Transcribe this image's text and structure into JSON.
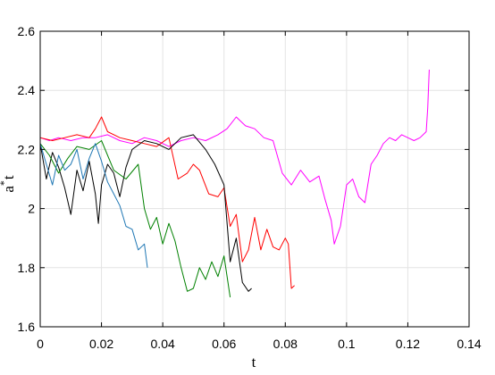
{
  "chart_data": {
    "type": "line",
    "xlabel": "t",
    "ylabel": {
      "base": "a",
      "sup": "*",
      "sub": "t"
    },
    "xlim": [
      0,
      0.14
    ],
    "ylim": [
      1.6,
      2.6
    ],
    "xticks": [
      0,
      0.02,
      0.04,
      0.06,
      0.08,
      0.1,
      0.12,
      0.14
    ],
    "xtick_labels": [
      "0",
      "0.02",
      "0.04",
      "0.06",
      "0.08",
      "0.1",
      "0.12",
      "0.14"
    ],
    "yticks": [
      1.6,
      1.8,
      2.0,
      2.2,
      2.4,
      2.6
    ],
    "ytick_labels": [
      "1.6",
      "1.8",
      "2",
      "2.2",
      "2.4",
      "2.6"
    ],
    "grid": true,
    "series": [
      {
        "color": "#ff00ff",
        "x": [
          0,
          0.003,
          0.006,
          0.01,
          0.014,
          0.018,
          0.022,
          0.026,
          0.03,
          0.034,
          0.038,
          0.042,
          0.046,
          0.05,
          0.054,
          0.058,
          0.061,
          0.064,
          0.067,
          0.07,
          0.073,
          0.076,
          0.079,
          0.082,
          0.085,
          0.088,
          0.091,
          0.093,
          0.095,
          0.096,
          0.098,
          0.1,
          0.102,
          0.104,
          0.106,
          0.108,
          0.11,
          0.112,
          0.114,
          0.116,
          0.118,
          0.12,
          0.122,
          0.124,
          0.126,
          0.1265,
          0.127
        ],
        "y": [
          2.24,
          2.23,
          2.24,
          2.23,
          2.24,
          2.24,
          2.25,
          2.23,
          2.22,
          2.24,
          2.23,
          2.21,
          2.23,
          2.24,
          2.23,
          2.25,
          2.27,
          2.31,
          2.28,
          2.27,
          2.24,
          2.23,
          2.12,
          2.08,
          2.13,
          2.09,
          2.11,
          2.03,
          1.96,
          1.88,
          1.94,
          2.08,
          2.1,
          2.04,
          2.02,
          2.15,
          2.18,
          2.22,
          2.24,
          2.23,
          2.25,
          2.24,
          2.23,
          2.24,
          2.26,
          2.34,
          2.47
        ]
      },
      {
        "color": "#ff0000",
        "x": [
          0,
          0.004,
          0.008,
          0.012,
          0.016,
          0.018,
          0.02,
          0.022,
          0.026,
          0.03,
          0.034,
          0.038,
          0.042,
          0.045,
          0.048,
          0.05,
          0.052,
          0.055,
          0.058,
          0.06,
          0.062,
          0.064,
          0.066,
          0.068,
          0.07,
          0.072,
          0.074,
          0.076,
          0.078,
          0.08,
          0.081,
          0.082,
          0.083
        ],
        "y": [
          2.24,
          2.23,
          2.24,
          2.25,
          2.24,
          2.27,
          2.31,
          2.26,
          2.24,
          2.23,
          2.22,
          2.21,
          2.24,
          2.1,
          2.12,
          2.15,
          2.13,
          2.05,
          2.04,
          2.07,
          1.94,
          1.98,
          1.82,
          1.86,
          1.97,
          1.86,
          1.93,
          1.87,
          1.86,
          1.9,
          1.88,
          1.73,
          1.74
        ]
      },
      {
        "color": "#000000",
        "x": [
          0,
          0.002,
          0.004,
          0.006,
          0.008,
          0.01,
          0.012,
          0.014,
          0.016,
          0.018,
          0.019,
          0.02,
          0.022,
          0.024,
          0.026,
          0.028,
          0.03,
          0.034,
          0.038,
          0.042,
          0.046,
          0.05,
          0.054,
          0.057,
          0.06,
          0.062,
          0.064,
          0.066,
          0.068,
          0.069
        ],
        "y": [
          2.22,
          2.1,
          2.19,
          2.14,
          2.07,
          1.98,
          2.13,
          2.06,
          2.16,
          2.05,
          1.95,
          2.08,
          2.15,
          2.12,
          2.04,
          2.14,
          2.2,
          2.23,
          2.22,
          2.2,
          2.24,
          2.25,
          2.2,
          2.15,
          2.08,
          1.82,
          1.9,
          1.75,
          1.72,
          1.73
        ]
      },
      {
        "color": "#008000",
        "x": [
          0,
          0.003,
          0.006,
          0.009,
          0.012,
          0.016,
          0.02,
          0.024,
          0.028,
          0.032,
          0.034,
          0.036,
          0.038,
          0.04,
          0.042,
          0.044,
          0.046,
          0.048,
          0.05,
          0.052,
          0.054,
          0.056,
          0.058,
          0.06,
          0.062
        ],
        "y": [
          2.22,
          2.18,
          2.12,
          2.17,
          2.21,
          2.2,
          2.23,
          2.13,
          2.1,
          2.15,
          2.0,
          1.93,
          1.97,
          1.88,
          1.95,
          1.89,
          1.8,
          1.72,
          1.73,
          1.8,
          1.76,
          1.82,
          1.77,
          1.84,
          1.7
        ]
      },
      {
        "color": "#1f77b4",
        "x": [
          0,
          0.002,
          0.004,
          0.006,
          0.008,
          0.01,
          0.012,
          0.014,
          0.016,
          0.018,
          0.02,
          0.022,
          0.024,
          0.026,
          0.028,
          0.03,
          0.032,
          0.034,
          0.035
        ],
        "y": [
          2.22,
          2.15,
          2.08,
          2.18,
          2.13,
          2.15,
          2.2,
          2.1,
          2.17,
          2.22,
          2.16,
          2.09,
          2.05,
          2.01,
          1.94,
          1.93,
          1.86,
          1.88,
          1.8
        ]
      }
    ]
  }
}
